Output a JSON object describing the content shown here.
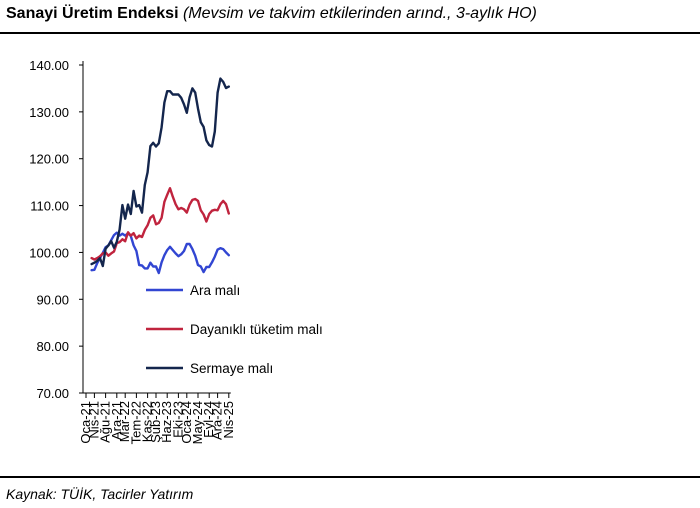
{
  "header": {
    "title": "Sanayi Üretim Endeksi",
    "subtitle": "(Mevsim ve takvim etkilerinden arınd., 3-aylık HO)"
  },
  "footer": {
    "source": "Kaynak: TÜİK, Tacirler Yatırım"
  },
  "chart_data": {
    "type": "line",
    "title": "Sanayi Üretim Endeksi",
    "xlabel": "",
    "ylabel": "",
    "ylim": [
      70,
      140
    ],
    "y_ticks": [
      "70.00",
      "80.00",
      "90.00",
      "100.00",
      "110.00",
      "120.00",
      "130.00",
      "140.00"
    ],
    "x_tick_labels": [
      "Oca-21",
      "Nis-21",
      "Ağu-21",
      "Ara-21",
      "Mar-22",
      "Tem-22",
      "Kas-22",
      "Şub-23",
      "Haz-23",
      "Eki-23",
      "Oca-24",
      "May-24",
      "Eyl-24",
      "Ara-24",
      "Nis-25"
    ],
    "x": [
      "Mar-21",
      "Nis-21",
      "May-21",
      "Haz-21",
      "Tem-21",
      "Ağu-21",
      "Eyl-21",
      "Eki-21",
      "Kas-21",
      "Ara-21",
      "Oca-22",
      "Şub-22",
      "Mar-22",
      "Nis-22",
      "May-22",
      "Haz-22",
      "Tem-22",
      "Ağu-22",
      "Eyl-22",
      "Eki-22",
      "Kas-22",
      "Ara-22",
      "Oca-23",
      "Şub-23",
      "Mar-23",
      "Nis-23",
      "May-23",
      "Haz-23",
      "Tem-23",
      "Ağu-23",
      "Eyl-23",
      "Eki-23",
      "Kas-23",
      "Ara-23",
      "Oca-24",
      "Şub-24",
      "Mar-24",
      "Nis-24",
      "May-24",
      "Haz-24",
      "Tem-24",
      "Ağu-24",
      "Eyl-24",
      "Eki-24",
      "Kas-24",
      "Ara-24",
      "Oca-25",
      "Şub-25",
      "Mar-25",
      "Nis-25"
    ],
    "series": [
      {
        "name": "Ara malı",
        "color": "#3246d2",
        "values": [
          96.2,
          96.3,
          97.7,
          98.8,
          99.9,
          101.1,
          101.5,
          102.6,
          103.7,
          104.2,
          103.6,
          104.0,
          103.6,
          104.1,
          103.5,
          101.5,
          100.3,
          97.3,
          97.2,
          96.6,
          96.6,
          97.8,
          97.0,
          97.0,
          95.6,
          97.9,
          99.4,
          100.5,
          101.2,
          100.5,
          99.8,
          99.2,
          99.6,
          100.3,
          101.8,
          101.8,
          100.7,
          99.3,
          97.3,
          97.0,
          95.8,
          96.9,
          96.9,
          97.9,
          99.1,
          100.6,
          100.9,
          100.7,
          100.0,
          99.4
        ]
      },
      {
        "name": "Dayanıklı tüketim malı",
        "color": "#c0243e",
        "values": [
          98.8,
          98.5,
          98.8,
          99.2,
          99.8,
          100.0,
          99.3,
          99.8,
          100.2,
          102.0,
          102.2,
          102.8,
          102.4,
          104.3,
          103.6,
          104.1,
          103.0,
          103.6,
          103.3,
          104.8,
          105.8,
          107.4,
          107.9,
          106.0,
          106.3,
          107.4,
          110.8,
          112.3,
          113.7,
          111.9,
          110.3,
          109.2,
          109.5,
          109.2,
          108.5,
          110.2,
          111.2,
          111.4,
          111.0,
          109.0,
          108.1,
          106.6,
          108.2,
          108.9,
          109.1,
          109.0,
          110.3,
          111.0,
          110.3,
          108.3
        ]
      },
      {
        "name": "Sermaye malı",
        "color": "#14264d",
        "values": [
          97.5,
          97.8,
          98.2,
          98.8,
          97.1,
          100.8,
          101.5,
          102.4,
          101.0,
          102.3,
          104.9,
          110.1,
          107.2,
          110.2,
          108.2,
          113.1,
          109.8,
          110.1,
          108.5,
          114.4,
          117.1,
          122.7,
          123.4,
          122.6,
          123.3,
          126.7,
          132.0,
          134.4,
          134.4,
          133.7,
          133.7,
          133.7,
          133.0,
          131.6,
          129.8,
          133.1,
          135.0,
          134.1,
          130.7,
          127.8,
          126.8,
          123.9,
          122.9,
          122.6,
          125.8,
          134.1,
          137.1,
          136.4,
          135.1,
          135.4
        ]
      }
    ],
    "legend": {
      "position": "center-left",
      "entries": [
        "Ara malı",
        "Dayanıklı tüketim malı",
        "Sermaye malı"
      ]
    },
    "grid": false
  }
}
